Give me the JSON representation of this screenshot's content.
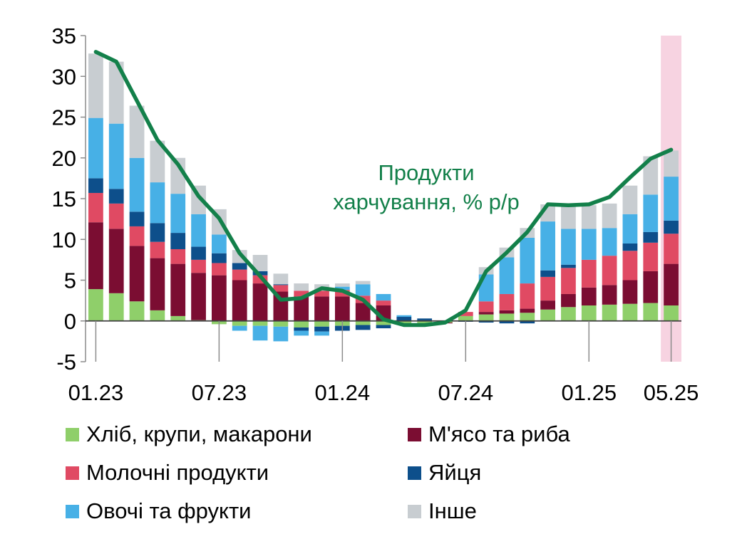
{
  "chart_data": {
    "type": "bar",
    "stacked": true,
    "ylim": [
      -5,
      35
    ],
    "yticks": [
      35,
      30,
      25,
      20,
      15,
      10,
      5,
      0,
      -5
    ],
    "xticks": [
      {
        "index": 0,
        "label": "01.23"
      },
      {
        "index": 6,
        "label": "07.23"
      },
      {
        "index": 12,
        "label": "01.24"
      },
      {
        "index": 18,
        "label": "07.24"
      },
      {
        "index": 24,
        "label": "01.25"
      },
      {
        "index": 28,
        "label": "05.25"
      }
    ],
    "categories": [
      "01.23",
      "02.23",
      "03.23",
      "04.23",
      "05.23",
      "06.23",
      "07.23",
      "08.23",
      "09.23",
      "10.23",
      "11.23",
      "12.23",
      "01.24",
      "02.24",
      "03.24",
      "04.24",
      "05.24",
      "06.24",
      "07.24",
      "08.24",
      "09.24",
      "10.24",
      "11.24",
      "12.24",
      "01.25",
      "02.25",
      "03.25",
      "04.25",
      "05.25"
    ],
    "highlight_index": 28,
    "grid": false,
    "legend_position": "bottom",
    "series": [
      {
        "name": "Хліб, крупи, макарони",
        "color": "#8fcf6a",
        "values": [
          3.9,
          3.4,
          2.4,
          1.3,
          0.6,
          0.1,
          -0.4,
          -0.6,
          -0.6,
          -0.7,
          -0.8,
          -0.7,
          -0.6,
          -0.5,
          -0.5,
          -0.3,
          -0.3,
          -0.2,
          0.6,
          0.8,
          0.9,
          1.0,
          1.4,
          1.7,
          1.9,
          2.0,
          2.1,
          2.2,
          1.9
        ]
      },
      {
        "name": "М'ясо та риба",
        "color": "#7b0d32",
        "values": [
          8.2,
          7.9,
          6.8,
          6.4,
          6.4,
          5.8,
          5.6,
          5.0,
          4.6,
          3.6,
          3.0,
          3.0,
          3.0,
          2.2,
          1.9,
          0.0,
          -0.1,
          -0.1,
          0.0,
          0.3,
          0.4,
          0.5,
          1.1,
          1.6,
          2.2,
          2.4,
          2.9,
          3.9,
          5.1
        ]
      },
      {
        "name": "Молочні продукти",
        "color": "#e04a63",
        "values": [
          3.6,
          3.1,
          2.4,
          2.0,
          1.8,
          1.6,
          1.5,
          1.3,
          1.0,
          0.8,
          0.7,
          0.7,
          0.8,
          0.9,
          0.6,
          0.0,
          0.0,
          0.0,
          0.5,
          1.3,
          2.0,
          3.1,
          2.9,
          3.2,
          3.4,
          3.6,
          3.6,
          3.5,
          3.7
        ]
      },
      {
        "name": "Яйця",
        "color": "#0d4f8b",
        "values": [
          1.8,
          1.8,
          1.8,
          2.3,
          2.0,
          1.6,
          1.2,
          0.8,
          0.5,
          0.1,
          -0.4,
          -0.6,
          -0.6,
          -0.6,
          -0.4,
          0.5,
          0.3,
          0.0,
          -0.1,
          -0.2,
          -0.3,
          -0.3,
          0.8,
          0.4,
          0.0,
          0.0,
          0.9,
          1.3,
          1.6
        ]
      },
      {
        "name": "Овочі та фрукти",
        "color": "#47b0e6",
        "values": [
          7.4,
          8.0,
          6.6,
          5.0,
          4.8,
          4.0,
          2.3,
          -0.6,
          -1.8,
          -1.8,
          -0.6,
          -0.5,
          0.4,
          1.4,
          0.8,
          0.2,
          0.0,
          0.0,
          0.0,
          3.3,
          4.5,
          5.6,
          6.0,
          4.4,
          3.8,
          3.4,
          3.6,
          4.6,
          5.4
        ]
      },
      {
        "name": "Інше",
        "color": "#c8cdd1",
        "values": [
          7.9,
          7.6,
          6.4,
          5.1,
          4.4,
          3.5,
          3.1,
          1.6,
          2.0,
          1.3,
          0.9,
          0.8,
          0.4,
          0.4,
          0.0,
          -0.2,
          -0.2,
          0.0,
          0.0,
          0.9,
          1.2,
          1.2,
          2.1,
          2.8,
          2.9,
          3.0,
          3.5,
          4.7,
          3.2
        ]
      }
    ],
    "line": {
      "label": [
        "Продукти",
        "харчування, % р/р"
      ],
      "color": "#13804a",
      "values": [
        33.0,
        31.8,
        27.0,
        22.2,
        19.2,
        15.3,
        12.6,
        8.3,
        5.5,
        2.6,
        2.8,
        4.0,
        3.7,
        2.6,
        0.2,
        -0.5,
        -0.5,
        -0.2,
        1.3,
        6.1,
        8.4,
        10.9,
        14.3,
        14.2,
        14.3,
        15.2,
        17.6,
        19.9,
        21.0
      ]
    }
  }
}
